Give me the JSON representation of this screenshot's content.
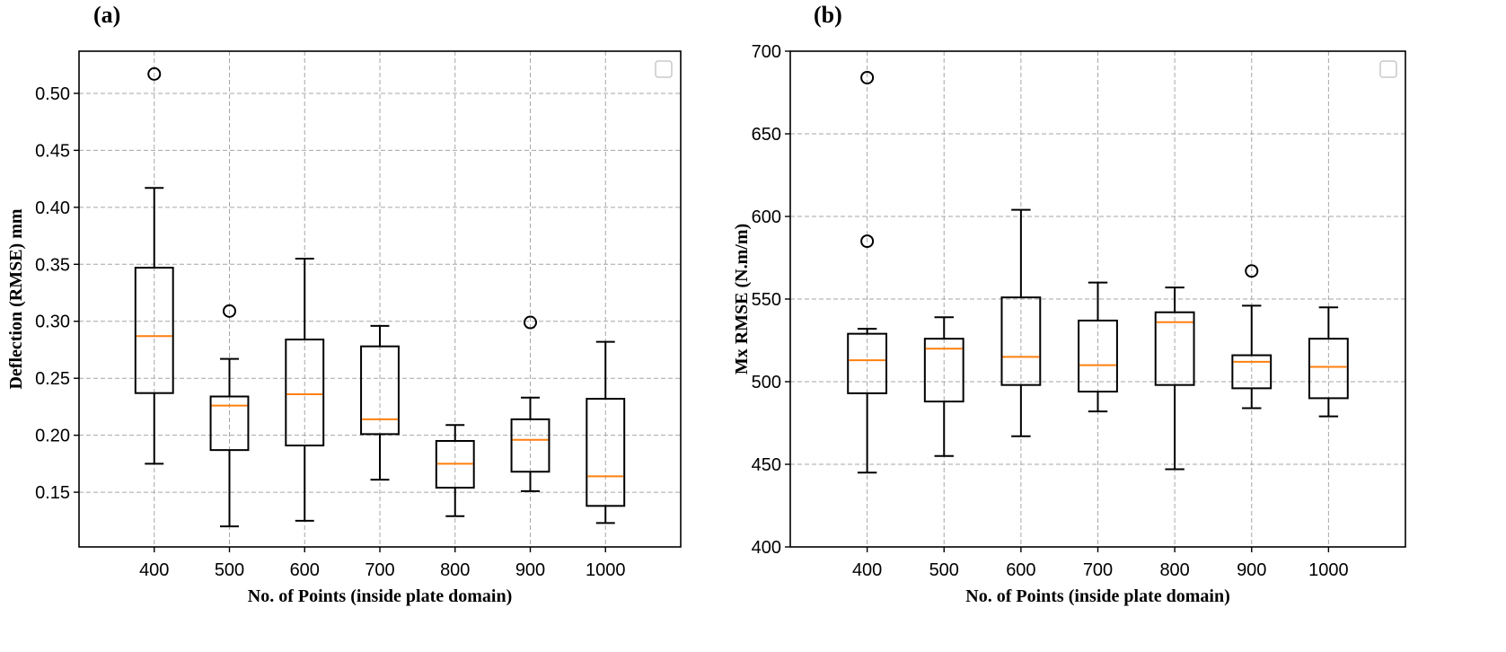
{
  "colors": {
    "median": "#ff7f0e",
    "box": "#000000",
    "grid": "#a6a6a6"
  },
  "chart_data": [
    {
      "type": "box",
      "panel_label": "(a)",
      "xlabel": "No. of Points (inside plate domain)",
      "ylabel": "Deflection (RMSE) mm",
      "categories": [
        "400",
        "500",
        "600",
        "700",
        "800",
        "900",
        "1000"
      ],
      "ylim": [
        0.102,
        0.537
      ],
      "yticks": [
        0.15,
        0.2,
        0.25,
        0.3,
        0.35,
        0.4,
        0.45,
        0.5
      ],
      "ytick_labels": [
        "0.15",
        "0.20",
        "0.25",
        "0.30",
        "0.35",
        "0.40",
        "0.45",
        "0.50"
      ],
      "grid": true,
      "legend": "top-right (empty)",
      "boxes": [
        {
          "whislo": 0.175,
          "q1": 0.237,
          "med": 0.287,
          "q3": 0.347,
          "whishi": 0.417,
          "fliers": [
            0.517
          ]
        },
        {
          "whislo": 0.12,
          "q1": 0.187,
          "med": 0.226,
          "q3": 0.234,
          "whishi": 0.267,
          "fliers": [
            0.309
          ]
        },
        {
          "whislo": 0.125,
          "q1": 0.191,
          "med": 0.236,
          "q3": 0.284,
          "whishi": 0.355,
          "fliers": []
        },
        {
          "whislo": 0.161,
          "q1": 0.201,
          "med": 0.214,
          "q3": 0.278,
          "whishi": 0.296,
          "fliers": []
        },
        {
          "whislo": 0.129,
          "q1": 0.154,
          "med": 0.175,
          "q3": 0.195,
          "whishi": 0.209,
          "fliers": []
        },
        {
          "whislo": 0.151,
          "q1": 0.168,
          "med": 0.196,
          "q3": 0.214,
          "whishi": 0.233,
          "fliers": [
            0.299
          ]
        },
        {
          "whislo": 0.123,
          "q1": 0.138,
          "med": 0.164,
          "q3": 0.232,
          "whishi": 0.282,
          "fliers": []
        }
      ]
    },
    {
      "type": "box",
      "panel_label": "(b)",
      "xlabel": "No. of Points (inside plate domain)",
      "ylabel": "Mx RMSE (N.m/m)",
      "categories": [
        "400",
        "500",
        "600",
        "700",
        "800",
        "900",
        "1000"
      ],
      "ylim": [
        400,
        700
      ],
      "yticks": [
        400,
        450,
        500,
        550,
        600,
        650,
        700
      ],
      "ytick_labels": [
        "400",
        "450",
        "500",
        "550",
        "600",
        "650",
        "700"
      ],
      "grid": true,
      "legend": "top-right (empty)",
      "boxes": [
        {
          "whislo": 445,
          "q1": 493,
          "med": 513,
          "q3": 529,
          "whishi": 532,
          "fliers": [
            585,
            684
          ]
        },
        {
          "whislo": 455,
          "q1": 488,
          "med": 520,
          "q3": 526,
          "whishi": 539,
          "fliers": []
        },
        {
          "whislo": 467,
          "q1": 498,
          "med": 515,
          "q3": 551,
          "whishi": 604,
          "fliers": []
        },
        {
          "whislo": 482,
          "q1": 494,
          "med": 510,
          "q3": 537,
          "whishi": 560,
          "fliers": []
        },
        {
          "whislo": 447,
          "q1": 498,
          "med": 536,
          "q3": 542,
          "whishi": 557,
          "fliers": []
        },
        {
          "whislo": 484,
          "q1": 496,
          "med": 512,
          "q3": 516,
          "whishi": 546,
          "fliers": [
            567
          ]
        },
        {
          "whislo": 479,
          "q1": 490,
          "med": 509,
          "q3": 526,
          "whishi": 545,
          "fliers": []
        }
      ]
    }
  ]
}
